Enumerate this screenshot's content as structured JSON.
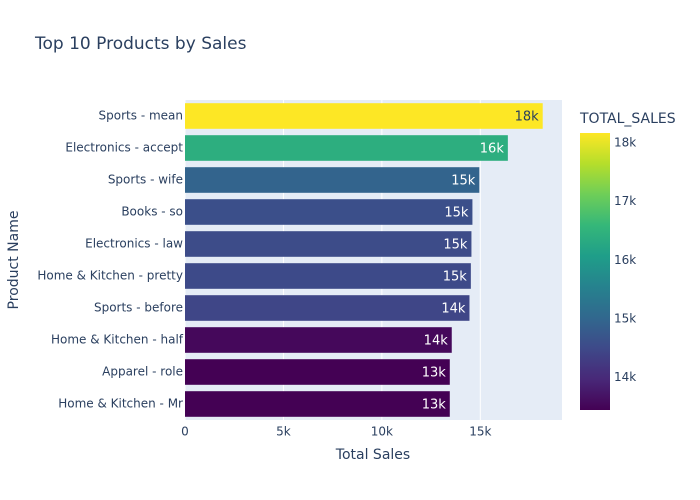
{
  "chart_data": {
    "type": "bar",
    "orientation": "horizontal",
    "title": "Top 10 Products by Sales",
    "x_label": "Total Sales",
    "y_label": "Product Name",
    "categories": [
      "Sports - mean",
      "Electronics - accept",
      "Sports - wife",
      "Books - so",
      "Electronics - law",
      "Home & Kitchen - pretty",
      "Sports - before",
      "Home & Kitchen - half",
      "Apparel - role",
      "Home & Kitchen - Mr"
    ],
    "values": [
      18170,
      16400,
      14950,
      14600,
      14550,
      14520,
      14450,
      13550,
      13450,
      13450
    ],
    "value_labels": [
      "18k",
      "16k",
      "15k",
      "15k",
      "15k",
      "15k",
      "14k",
      "14k",
      "13k",
      "13k"
    ],
    "xlim": [
      0,
      19150
    ],
    "xticks": [
      0,
      {
        "value": 5000,
        "label": "5k"
      },
      {
        "value": 10000,
        "label": "10k"
      },
      {
        "value": 15000,
        "label": "15k"
      }
    ],
    "grid": true,
    "colorbar": {
      "title": "TOTAL_SALES",
      "lim": [
        13450,
        18170
      ],
      "ticks": [
        {
          "value": 14000,
          "label": "14k"
        },
        {
          "value": 15000,
          "label": "15k"
        },
        {
          "value": 16000,
          "label": "16k"
        },
        {
          "value": 17000,
          "label": "17k"
        },
        {
          "value": 18000,
          "label": "18k"
        }
      ],
      "colorscale": [
        "#440154",
        "#482878",
        "#3e4989",
        "#31688e",
        "#26828e",
        "#1f9e89",
        "#35b779",
        "#6ece58",
        "#b5de2b",
        "#fde725"
      ]
    }
  }
}
